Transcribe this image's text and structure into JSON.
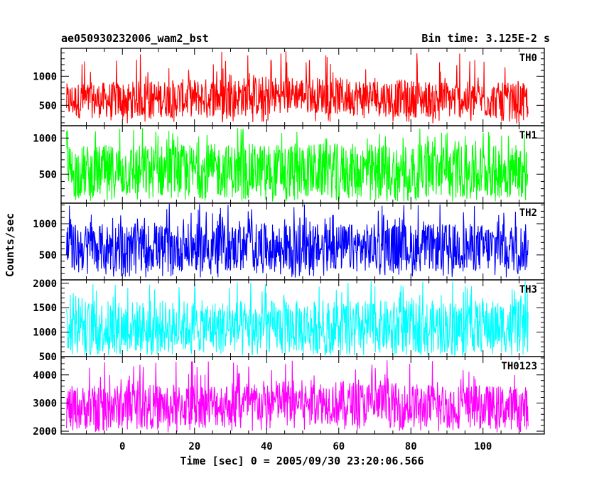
{
  "chart_data": {
    "type": "line",
    "title": "ae050930232006_wam2_bst",
    "subtitle": "Bin time: 3.125E-2 s",
    "xlabel": "Time [sec] 0 = 2005/09/30 23:20:06.566",
    "ylabel": "Counts/sec",
    "xlim": [
      -17,
      117
    ],
    "data_range": [
      -15.5,
      112.5
    ],
    "xticks": [
      0,
      20,
      40,
      60,
      80,
      100
    ],
    "grid": false,
    "panels": [
      {
        "name": "TH0",
        "color": "#ff0000",
        "ylim": [
          150,
          1480
        ],
        "yticks": [
          500,
          1000
        ],
        "baseline": [
          [
            -15.5,
            880
          ],
          [
            0,
            910
          ],
          [
            20,
            960
          ],
          [
            40,
            1010
          ],
          [
            60,
            980
          ],
          [
            80,
            940
          ],
          [
            100,
            900
          ],
          [
            112.5,
            880
          ]
        ],
        "envelope_low": [
          [
            -15.5,
            270
          ],
          [
            20,
            300
          ],
          [
            40,
            310
          ],
          [
            47,
            420
          ],
          [
            60,
            330
          ],
          [
            80,
            290
          ],
          [
            112.5,
            260
          ]
        ],
        "peak_max": 1460
      },
      {
        "name": "TH1",
        "color": "#00ff00",
        "ylim": [
          100,
          1170
        ],
        "yticks": [
          500,
          1000
        ],
        "baseline": [
          [
            -15.5,
            900
          ],
          [
            50,
            930
          ],
          [
            112.5,
            900
          ]
        ],
        "envelope_low": [
          [
            -15.5,
            170
          ],
          [
            112.5,
            170
          ]
        ],
        "peak_max": 1160
      },
      {
        "name": "TH2",
        "color": "#0000ff",
        "ylim": [
          100,
          1330
        ],
        "yticks": [
          500,
          1000
        ],
        "baseline": [
          [
            -15.5,
            1000
          ],
          [
            112.5,
            1000
          ]
        ],
        "envelope_low": [
          [
            -15.5,
            230
          ],
          [
            112.5,
            230
          ]
        ],
        "peak_max": 1320
      },
      {
        "name": "TH3",
        "color": "#00ffff",
        "ylim": [
          500,
          2070
        ],
        "yticks": [
          500,
          1000,
          1500,
          2000
        ],
        "baseline": [
          [
            -15.5,
            1650
          ],
          [
            112.5,
            1650
          ]
        ],
        "envelope_low": [
          [
            -15.5,
            570
          ],
          [
            112.5,
            570
          ]
        ],
        "peak_max": 2050
      },
      {
        "name": "TH0123",
        "color": "#ff00ff",
        "ylim": [
          1900,
          4650
        ],
        "yticks": [
          2000,
          3000,
          4000
        ],
        "baseline": [
          [
            -15.5,
            3600
          ],
          [
            20,
            3700
          ],
          [
            45,
            3850
          ],
          [
            60,
            3800
          ],
          [
            80,
            3700
          ],
          [
            112.5,
            3600
          ]
        ],
        "envelope_low": [
          [
            -15.5,
            2050
          ],
          [
            20,
            2100
          ],
          [
            47,
            2300
          ],
          [
            80,
            2100
          ],
          [
            112.5,
            2050
          ]
        ],
        "peak_max": 4550
      }
    ]
  }
}
